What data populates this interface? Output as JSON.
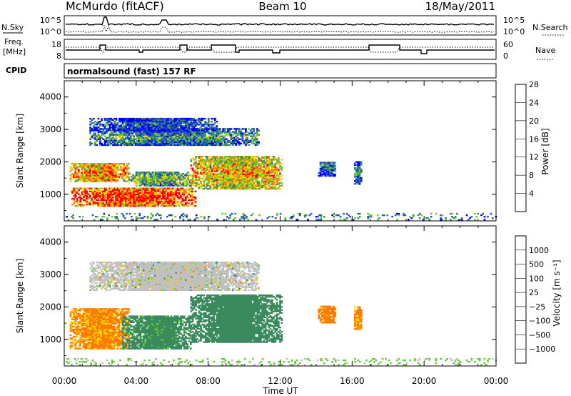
{
  "header": {
    "station": "McMurdo (fitACF)",
    "beam": "Beam 10",
    "date": "18/May/2011"
  },
  "sky_panel": {
    "left_label": "N.Sky",
    "right_label": "N.Search",
    "left_ticks": [
      "10^5",
      "10^0"
    ],
    "right_ticks": [
      "10^5",
      "10^0"
    ]
  },
  "freq_panel": {
    "left_label_1": "Freq.",
    "left_label_2": "[MHz]",
    "right_label": "Nave",
    "left_ticks": [
      "18",
      "8"
    ],
    "right_ticks": [
      "60",
      "0"
    ]
  },
  "cpid": {
    "label": "CPID",
    "value": "normalsound (fast) 157 RF"
  },
  "chart_data": [
    {
      "type": "heatmap",
      "panel": "power",
      "ylabel": "Slant Range [km]",
      "xlabel": "Time UT",
      "xlim": [
        0,
        24
      ],
      "ylim": [
        180,
        4500
      ],
      "x_ticks": [
        "00:00",
        "04:00",
        "08:00",
        "12:00",
        "16:00",
        "20:00",
        "00:00"
      ],
      "y_ticks": [
        "1000",
        "2000",
        "3000",
        "4000"
      ],
      "colorbar": {
        "label": "Power [dB]",
        "ticks": [
          "4",
          "8",
          "12",
          "16",
          "20",
          "24",
          "28"
        ],
        "colors": [
          "#0000ff",
          "#2255c8",
          "#3a8a5e",
          "#66cc33",
          "#ffd000",
          "#ff7a00",
          "#ff0000"
        ]
      },
      "regions": [
        {
          "t0": 0.4,
          "t1": 7.3,
          "r0": 620,
          "r1": 1180,
          "value": 26
        },
        {
          "t0": 0.3,
          "t1": 3.6,
          "r0": 1380,
          "r1": 1950,
          "value": 22
        },
        {
          "t0": 3.6,
          "t1": 7.0,
          "r0": 1250,
          "r1": 1700,
          "value": 14
        },
        {
          "t0": 7.0,
          "t1": 12.1,
          "r0": 1150,
          "r1": 2150,
          "value": 20
        },
        {
          "t0": 1.4,
          "t1": 10.8,
          "r0": 2500,
          "r1": 3000,
          "value": 11
        },
        {
          "t0": 1.4,
          "t1": 8.5,
          "r0": 2950,
          "r1": 3350,
          "value": 7
        },
        {
          "t0": 14.1,
          "t1": 15.0,
          "r0": 1550,
          "r1": 2000,
          "value": 9
        },
        {
          "t0": 16.1,
          "t1": 16.5,
          "r0": 1300,
          "r1": 2000,
          "value": 11
        },
        {
          "t0": 0.0,
          "t1": 24.0,
          "r0": 200,
          "r1": 420,
          "value": 9
        }
      ]
    },
    {
      "type": "heatmap",
      "panel": "velocity",
      "ylabel": "Slant Range [km]",
      "xlabel": "Time UT",
      "xlim": [
        0,
        24
      ],
      "ylim": [
        180,
        4500
      ],
      "x_ticks": [
        "00:00",
        "04:00",
        "08:00",
        "12:00",
        "16:00",
        "20:00",
        "00:00"
      ],
      "y_ticks": [
        "1000",
        "2000",
        "3000",
        "4000"
      ],
      "colorbar": {
        "label": "Velocity [m s⁻¹]",
        "ticks": [
          "1000",
          "500",
          "100",
          "25",
          "−25",
          "−100",
          "−500",
          "−1000"
        ],
        "colors": [
          "#2244aa",
          "#2a7a8a",
          "#3a8a5e",
          "#66cc33",
          "#c0c0c0",
          "#ffd000",
          "#ff7a00",
          "#ff3300",
          "#ff0000"
        ]
      },
      "regions": [
        {
          "t0": 0.3,
          "t1": 3.6,
          "r0": 700,
          "r1": 1950,
          "value": -120
        },
        {
          "t0": 3.2,
          "t1": 7.0,
          "r0": 700,
          "r1": 1700,
          "value": 150
        },
        {
          "t0": 7.0,
          "t1": 12.1,
          "r0": 900,
          "r1": 2350,
          "value": 180
        },
        {
          "t0": 1.4,
          "t1": 10.8,
          "r0": 2500,
          "r1": 3400,
          "value": 0
        },
        {
          "t0": 14.1,
          "t1": 15.0,
          "r0": 1500,
          "r1": 2000,
          "value": -150
        },
        {
          "t0": 16.1,
          "t1": 16.5,
          "r0": 1300,
          "r1": 2000,
          "value": -130
        },
        {
          "t0": 0.0,
          "t1": 24.0,
          "r0": 200,
          "r1": 420,
          "value": 30
        }
      ]
    }
  ],
  "colors": {
    "background": "#ffffff",
    "no_data": "#ffffff",
    "ground_scatter": "#b8b8b8"
  }
}
